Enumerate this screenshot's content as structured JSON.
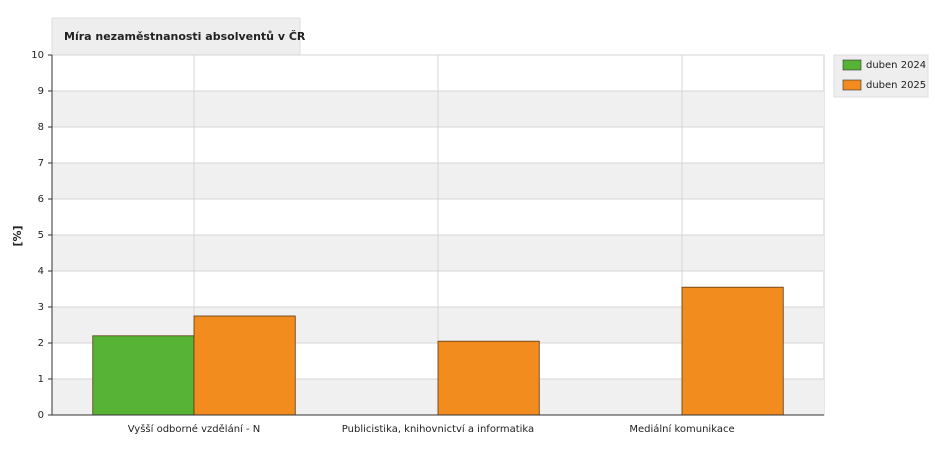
{
  "chart_data": {
    "type": "bar",
    "title": "Míra nezaměstnanosti absolventů v ČR",
    "y_label": "[%]",
    "categories": [
      "Vyšší odborné vzdělání - N",
      "Publicistika, knihovnictví a informatika",
      "Mediální komunikace"
    ],
    "series": [
      {
        "name": "duben 2024",
        "color": "#56b336",
        "values": [
          2.2,
          null,
          null
        ]
      },
      {
        "name": "duben 2025",
        "color": "#f28c1e",
        "values": [
          2.75,
          2.05,
          3.55
        ]
      }
    ],
    "ylim": [
      0,
      10
    ],
    "yticks": [
      0,
      1,
      2,
      3,
      4,
      5,
      6,
      7,
      8,
      9,
      10
    ],
    "grid": true,
    "legend": "right"
  }
}
